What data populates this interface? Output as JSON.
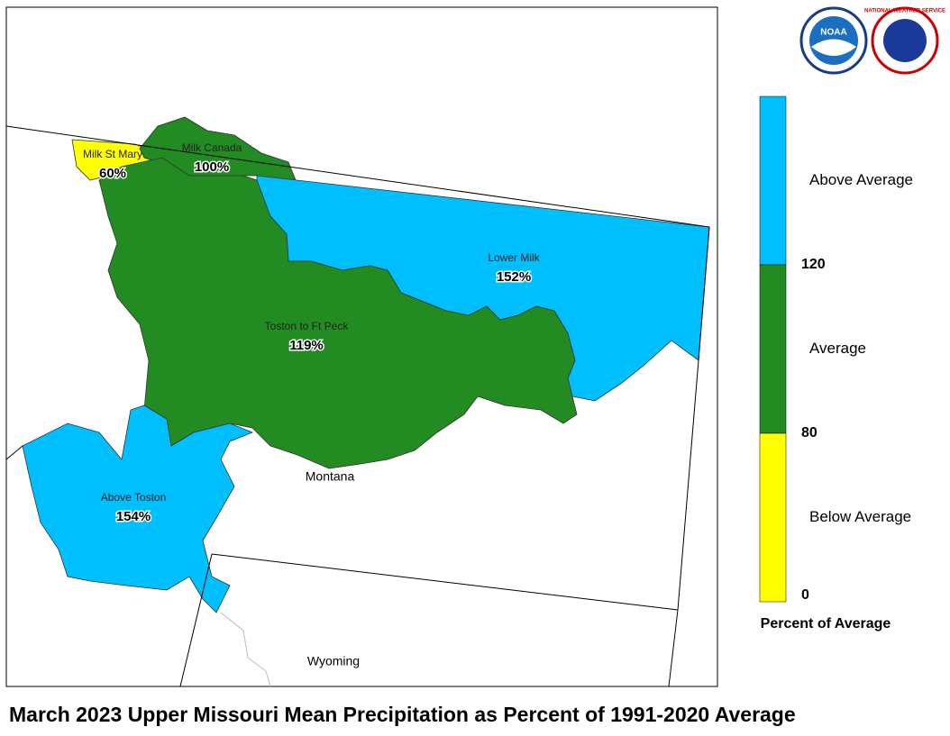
{
  "title": "March 2023 Upper Missouri Mean Precipitation as Percent of 1991-2020 Average",
  "logos": {
    "noaa": "NOAA",
    "nws": "NATIONAL WEATHER SERVICE"
  },
  "regions": [
    {
      "name": "Milk St Mary",
      "label": "60%",
      "color": "#ffff00"
    },
    {
      "name": "Milk Canada",
      "label": "100%",
      "color": "#228b22"
    },
    {
      "name": "Lower Milk",
      "label": "152%",
      "color": "#00bfff"
    },
    {
      "name": "Toston to Ft Peck",
      "label": "119%",
      "color": "#228b22"
    },
    {
      "name": "Above Toston",
      "label": "154%",
      "color": "#00bfff"
    }
  ],
  "states": [
    "Montana",
    "Wyoming"
  ],
  "legend": {
    "title": "Percent of Average",
    "classes": [
      {
        "name": "Above Average",
        "color": "#00bfff"
      },
      {
        "name": "Average",
        "color": "#228b22"
      },
      {
        "name": "Below Average",
        "color": "#ffff00"
      }
    ],
    "breaks": [
      120,
      80,
      0
    ]
  }
}
